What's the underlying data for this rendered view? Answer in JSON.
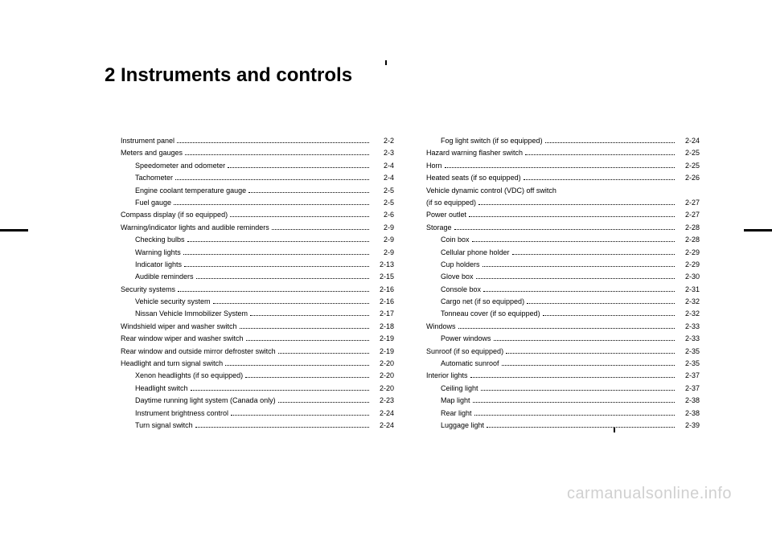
{
  "chapter_title": "2  Instruments and controls",
  "watermark": "carmanualsonline.info",
  "left_column": [
    {
      "label": "Instrument panel",
      "page": "2-2",
      "indent": false
    },
    {
      "label": "Meters and gauges",
      "page": "2-3",
      "indent": false
    },
    {
      "label": "Speedometer and odometer",
      "page": "2-4",
      "indent": true
    },
    {
      "label": "Tachometer",
      "page": "2-4",
      "indent": true
    },
    {
      "label": "Engine coolant temperature gauge",
      "page": "2-5",
      "indent": true
    },
    {
      "label": "Fuel gauge",
      "page": "2-5",
      "indent": true
    },
    {
      "label": "Compass display (if so equipped)",
      "page": "2-6",
      "indent": false
    },
    {
      "label": "Warning/indicator lights and audible reminders",
      "page": "2-9",
      "indent": false
    },
    {
      "label": "Checking bulbs",
      "page": "2-9",
      "indent": true
    },
    {
      "label": "Warning lights",
      "page": "2-9",
      "indent": true
    },
    {
      "label": "Indicator lights",
      "page": "2-13",
      "indent": true
    },
    {
      "label": "Audible reminders",
      "page": "2-15",
      "indent": true
    },
    {
      "label": "Security systems",
      "page": "2-16",
      "indent": false
    },
    {
      "label": "Vehicle security system",
      "page": "2-16",
      "indent": true
    },
    {
      "label": "Nissan Vehicle Immobilizer System",
      "page": "2-17",
      "indent": true
    },
    {
      "label": "Windshield wiper and washer switch",
      "page": "2-18",
      "indent": false
    },
    {
      "label": "Rear window wiper and washer switch",
      "page": "2-19",
      "indent": false
    },
    {
      "label": "Rear window and outside mirror defroster switch",
      "page": "2-19",
      "indent": false
    },
    {
      "label": "Headlight and turn signal switch",
      "page": "2-20",
      "indent": false
    },
    {
      "label": "Xenon headlights (if so equipped)",
      "page": "2-20",
      "indent": true
    },
    {
      "label": "Headlight switch",
      "page": "2-20",
      "indent": true
    },
    {
      "label": "Daytime running light system (Canada only)",
      "page": "2-23",
      "indent": true
    },
    {
      "label": "Instrument brightness control",
      "page": "2-24",
      "indent": true
    },
    {
      "label": "Turn signal switch",
      "page": "2-24",
      "indent": true
    }
  ],
  "right_column": [
    {
      "label": "Fog light switch (if so equipped)",
      "page": "2-24",
      "indent": true
    },
    {
      "label": "Hazard warning flasher switch",
      "page": "2-25",
      "indent": false
    },
    {
      "label": "Horn",
      "page": "2-25",
      "indent": false
    },
    {
      "label": "Heated seats (if so equipped)",
      "page": "2-26",
      "indent": false
    },
    {
      "label": "Vehicle dynamic control (VDC) off switch",
      "page": "",
      "indent": false,
      "no_page": true
    },
    {
      "label": "(if so equipped)",
      "page": "2-27",
      "indent": false
    },
    {
      "label": "Power outlet",
      "page": "2-27",
      "indent": false
    },
    {
      "label": "Storage",
      "page": "2-28",
      "indent": false
    },
    {
      "label": "Coin box",
      "page": "2-28",
      "indent": true
    },
    {
      "label": "Cellular phone holder",
      "page": "2-29",
      "indent": true
    },
    {
      "label": "Cup holders",
      "page": "2-29",
      "indent": true
    },
    {
      "label": "Glove box",
      "page": "2-30",
      "indent": true
    },
    {
      "label": "Console box",
      "page": "2-31",
      "indent": true
    },
    {
      "label": "Cargo net (if so equipped)",
      "page": "2-32",
      "indent": true
    },
    {
      "label": "Tonneau cover (if so equipped)",
      "page": "2-32",
      "indent": true
    },
    {
      "label": "Windows",
      "page": "2-33",
      "indent": false
    },
    {
      "label": "Power windows",
      "page": "2-33",
      "indent": true
    },
    {
      "label": "Sunroof (if so equipped)",
      "page": "2-35",
      "indent": false
    },
    {
      "label": "Automatic sunroof",
      "page": "2-35",
      "indent": true
    },
    {
      "label": "Interior lights",
      "page": "2-37",
      "indent": false
    },
    {
      "label": "Ceiling light",
      "page": "2-37",
      "indent": true
    },
    {
      "label": "Map light",
      "page": "2-38",
      "indent": true
    },
    {
      "label": "Rear light",
      "page": "2-38",
      "indent": true
    },
    {
      "label": "Luggage light",
      "page": "2-39",
      "indent": true
    }
  ]
}
